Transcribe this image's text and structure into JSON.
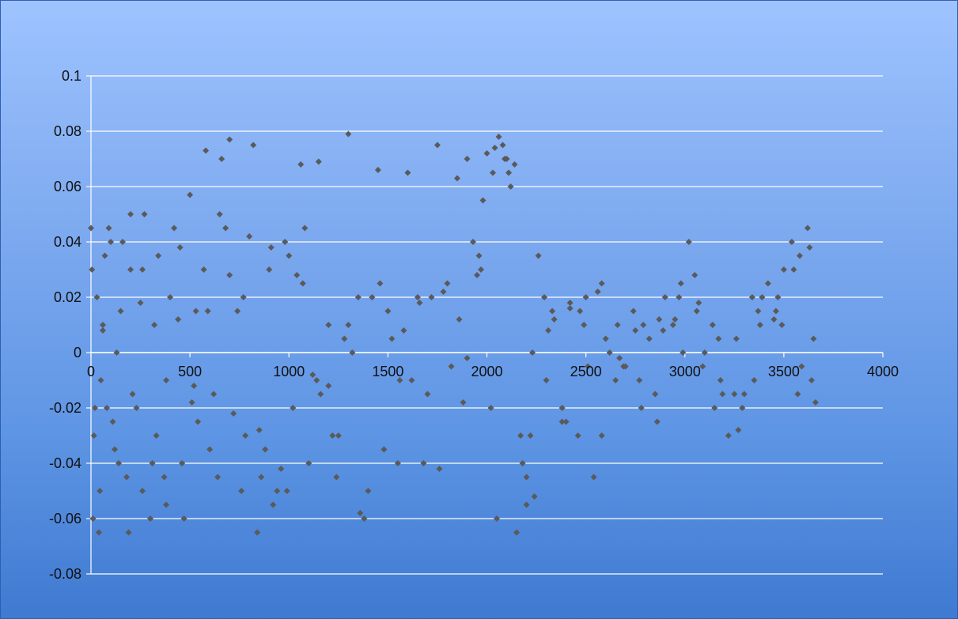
{
  "chart_data": {
    "type": "scatter",
    "title": "",
    "xlabel": "",
    "ylabel": "",
    "xlim": [
      0,
      4000
    ],
    "ylim": [
      -0.08,
      0.1
    ],
    "x_ticks": [
      "0",
      "500",
      "1000",
      "1500",
      "2000",
      "2500",
      "3000",
      "3500",
      "4000"
    ],
    "y_ticks": [
      "0.1",
      "0.08",
      "0.06",
      "0.04",
      "0.02",
      "0",
      "-0.02",
      "-0.04",
      "-0.06",
      "-0.08"
    ],
    "grid": {
      "horizontal": true,
      "vertical": false
    },
    "legend": "none",
    "colors": {
      "marker": "#5a5a5a",
      "grid": "#ffffff",
      "axis": "#ffffff"
    },
    "series": [
      {
        "marker": "diamond",
        "x": [
          0,
          15,
          30,
          45,
          60,
          80,
          100,
          120,
          150,
          180,
          200,
          230,
          260,
          300,
          340,
          380,
          420,
          460,
          500,
          540,
          580,
          620,
          660,
          700,
          740,
          780,
          820,
          860,
          900,
          940,
          980,
          1020,
          1060,
          1100,
          1150,
          1200,
          1250,
          1300,
          1350,
          1400,
          1450,
          1500,
          1550,
          1600,
          1650,
          1700,
          1750,
          1800,
          1850,
          1900,
          1930,
          1960,
          2000,
          2030,
          2060,
          2090,
          2120,
          2150,
          2180,
          2200,
          2230,
          2260,
          2300,
          2340,
          2380,
          2420,
          2460,
          2500,
          2540,
          2580,
          2620,
          2660,
          2700,
          2740,
          2780,
          2820,
          2860,
          2900,
          2940,
          2980,
          3020,
          3060,
          3100,
          3140,
          3180,
          3220,
          3260,
          3300,
          3340,
          3380,
          3420,
          3460,
          3500,
          3540,
          3580,
          3620,
          3650,
          10,
          40,
          70,
          110,
          160,
          210,
          270,
          330,
          400,
          470,
          530,
          600,
          680,
          760,
          850,
          920,
          1000,
          1080,
          1160,
          1240,
          1320,
          1420,
          1520,
          1620,
          1720,
          1820,
          1900,
          1980,
          2050,
          2110,
          2200,
          2290,
          2380,
          2470,
          2560,
          2650,
          2750,
          2850,
          2950,
          3050,
          3150,
          3250,
          3350,
          3450,
          3550,
          3640,
          5,
          50,
          90,
          140,
          200,
          260,
          320,
          380,
          450,
          520,
          590,
          650,
          720,
          800,
          880,
          960,
          1040,
          1120,
          1200,
          1280,
          1360,
          1460,
          1560,
          1660,
          1760,
          1860,
          1950,
          2020,
          2080,
          2140,
          2220,
          2310,
          2400,
          2490,
          2580,
          2670,
          2770,
          2870,
          2970,
          3070,
          3170,
          3270,
          3370,
          3470,
          3570,
          3630,
          20,
          60,
          130,
          190,
          250,
          310,
          370,
          440,
          510,
          570,
          640,
          700,
          770,
          840,
          910,
          990,
          1070,
          1140,
          1220,
          1300,
          1380,
          1480,
          1580,
          1680,
          1780,
          1880,
          1970,
          2040,
          2100,
          2170,
          2240,
          2330,
          2420,
          2510,
          2600,
          2690,
          2790,
          2890,
          2990,
          3090,
          3190,
          3290,
          3390,
          3490,
          3590,
          3660
        ],
        "y": [
          0.045,
          -0.03,
          0.02,
          -0.05,
          0.01,
          -0.02,
          0.04,
          -0.035,
          0.015,
          -0.045,
          0.05,
          -0.02,
          0.03,
          -0.06,
          0.035,
          -0.01,
          0.045,
          -0.04,
          0.057,
          -0.025,
          0.073,
          -0.015,
          0.07,
          0.077,
          0.015,
          -0.03,
          0.075,
          -0.045,
          0.03,
          -0.05,
          0.04,
          -0.02,
          0.068,
          -0.04,
          0.069,
          0.01,
          -0.03,
          0.079,
          0.02,
          -0.05,
          0.066,
          0.015,
          -0.04,
          0.065,
          0.02,
          -0.015,
          0.075,
          0.025,
          0.063,
          0.07,
          0.04,
          0.035,
          0.072,
          0.065,
          0.078,
          0.07,
          0.06,
          -0.065,
          -0.04,
          -0.055,
          0.0,
          0.035,
          -0.01,
          0.012,
          -0.025,
          0.016,
          -0.03,
          0.02,
          -0.045,
          0.025,
          0.0,
          0.01,
          -0.005,
          0.015,
          -0.02,
          0.005,
          -0.025,
          0.02,
          0.01,
          0.025,
          0.04,
          0.015,
          0.0,
          0.01,
          -0.01,
          -0.03,
          0.005,
          -0.015,
          0.02,
          0.01,
          0.025,
          0.015,
          0.03,
          0.04,
          0.035,
          0.045,
          0.005,
          -0.06,
          -0.065,
          0.035,
          -0.025,
          0.04,
          -0.015,
          0.05,
          -0.03,
          0.02,
          -0.06,
          0.015,
          -0.035,
          0.045,
          -0.05,
          -0.028,
          -0.055,
          0.035,
          0.045,
          -0.015,
          -0.045,
          0.0,
          0.02,
          0.005,
          -0.01,
          0.02,
          -0.005,
          -0.002,
          0.055,
          -0.06,
          0.065,
          -0.045,
          0.02,
          -0.02,
          0.015,
          0.022,
          -0.01,
          0.008,
          -0.015,
          0.012,
          0.028,
          -0.02,
          -0.015,
          -0.01,
          0.012,
          0.03,
          -0.01,
          0.03,
          -0.01,
          0.045,
          -0.04,
          0.03,
          -0.05,
          0.01,
          -0.055,
          0.038,
          -0.012,
          0.015,
          0.05,
          -0.022,
          0.042,
          -0.035,
          -0.042,
          0.028,
          -0.008,
          -0.012,
          0.005,
          -0.058,
          0.025,
          -0.01,
          0.018,
          -0.042,
          0.012,
          0.028,
          -0.02,
          0.075,
          0.068,
          -0.03,
          0.008,
          -0.025,
          0.01,
          -0.03,
          -0.002,
          -0.01,
          0.012,
          0.02,
          0.018,
          0.005,
          -0.028,
          0.015,
          0.02,
          -0.015,
          0.038,
          -0.02,
          0.008,
          0.0,
          -0.065,
          0.018,
          -0.04,
          -0.045,
          0.012,
          -0.018,
          0.03,
          -0.045,
          0.028,
          0.02,
          -0.065,
          0.038,
          -0.05,
          0.025,
          -0.01,
          -0.03,
          0.01,
          -0.06,
          -0.035,
          0.008,
          -0.04,
          0.022,
          -0.018,
          0.03,
          0.074,
          0.07,
          -0.03,
          -0.052,
          0.015,
          0.018,
          -0.005,
          0.005,
          -0.005,
          0.01,
          0.008,
          0.0,
          -0.005,
          -0.015,
          -0.02,
          0.02,
          0.01,
          -0.005,
          -0.018
        ]
      }
    ]
  }
}
